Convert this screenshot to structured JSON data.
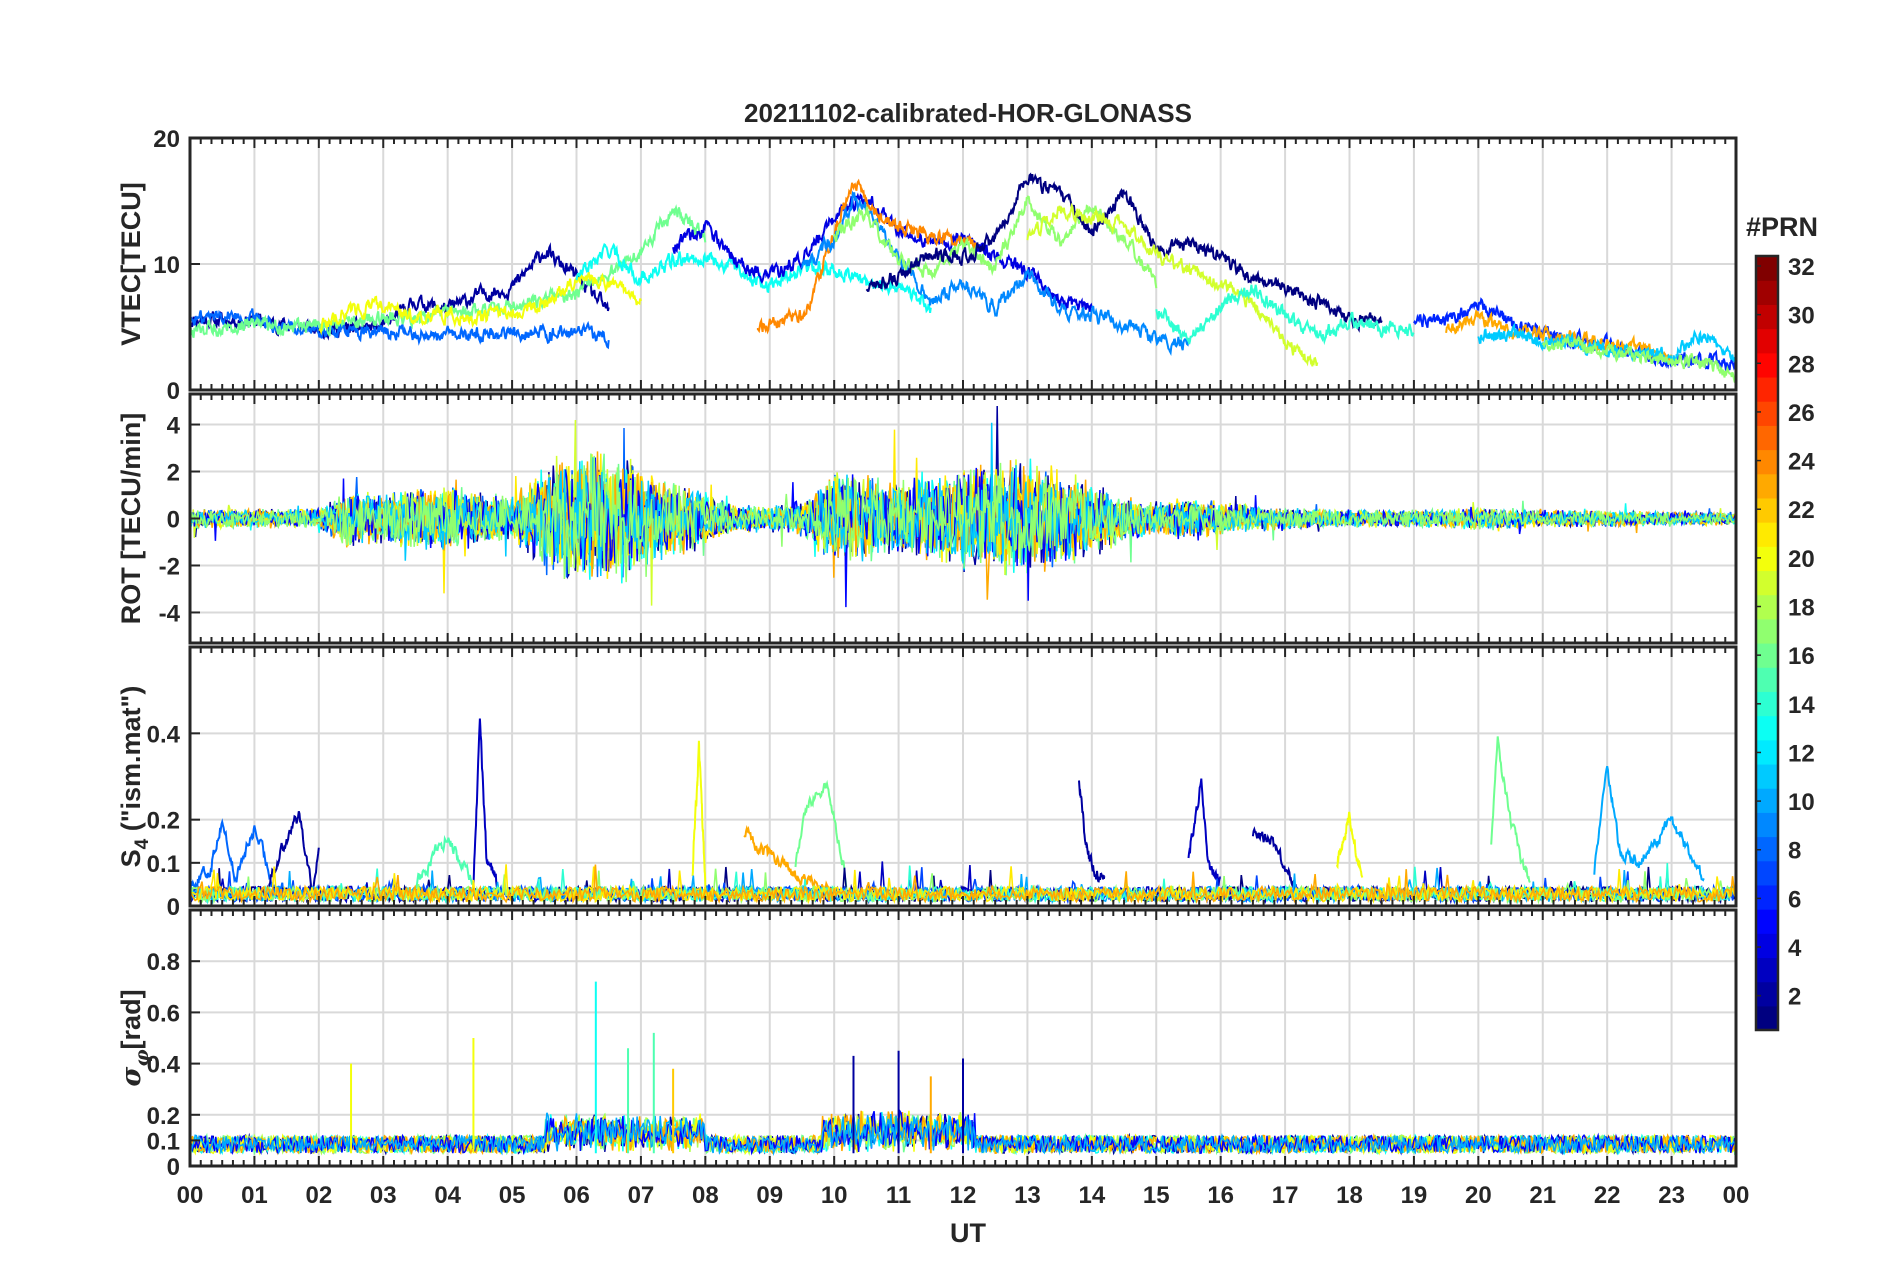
{
  "chart_data": [
    {
      "type": "line",
      "panel": "vtec",
      "title": "20211102-calibrated-HOR-GLONASS",
      "ylabel": "VTEC[TECU]",
      "ylim": [
        0,
        20
      ],
      "yticks": [
        0,
        10,
        20
      ],
      "series": [
        {
          "name": "PRN 2",
          "x": [
            0,
            1,
            2,
            3,
            3.5,
            4,
            4.5,
            5,
            5.5,
            6,
            6.5
          ],
          "values": [
            5.6,
            5.5,
            4.8,
            5.0,
            7.0,
            6.4,
            7.6,
            8.1,
            11.0,
            9.0,
            6.2
          ]
        },
        {
          "name": "PRN 8",
          "x": [
            0,
            0.5,
            1,
            1.5,
            2,
            3,
            4,
            5,
            6,
            6.5
          ],
          "values": [
            5.5,
            6.0,
            5.8,
            5.0,
            4.7,
            4.6,
            4.3,
            4.6,
            4.5,
            4.2
          ]
        },
        {
          "name": "PRN 16",
          "x": [
            0,
            0.5,
            1,
            1.5,
            2,
            3,
            4,
            5,
            6,
            7,
            7.5,
            8
          ],
          "values": [
            4.6,
            5.0,
            5.5,
            5.0,
            5.1,
            5.6,
            6.0,
            6.7,
            7.6,
            10.8,
            14.4,
            12.3
          ]
        },
        {
          "name": "PRN 20",
          "x": [
            2,
            2.5,
            3,
            3.5,
            4,
            4.5,
            5,
            5.5,
            6,
            6.5,
            7
          ],
          "values": [
            5.0,
            6.4,
            6.7,
            5.8,
            6.0,
            5.7,
            6.2,
            6.8,
            9.0,
            8.5,
            7.1
          ]
        },
        {
          "name": "PRN 13",
          "x": [
            6,
            6.5,
            7,
            7.5,
            8,
            8.5,
            9,
            9.5,
            10,
            10.5,
            11,
            11.5
          ],
          "values": [
            8.9,
            11.2,
            8.8,
            10.2,
            10.6,
            9.6,
            8.2,
            9.8,
            9.7,
            8.6,
            8.2,
            6.5
          ]
        },
        {
          "name": "PRN 4",
          "x": [
            7.5,
            8,
            8.5,
            9,
            9.5,
            10,
            10.5,
            11,
            11.5,
            12,
            12.5,
            13,
            13.5,
            14
          ],
          "values": [
            11.5,
            12.8,
            10.2,
            9.0,
            10.4,
            13.8,
            15.4,
            12.6,
            11.8,
            12.0,
            10.5,
            9.3,
            7.2,
            6.4
          ]
        },
        {
          "name": "PRN 24",
          "x": [
            8.8,
            9.2,
            9.6,
            10,
            10.3,
            10.6,
            11,
            11.4,
            11.8,
            12.2
          ],
          "values": [
            5.0,
            5.4,
            6.3,
            12.4,
            16.5,
            14.0,
            12.8,
            12.4,
            12.0,
            11.5
          ]
        },
        {
          "name": "PRN 9",
          "x": [
            9.5,
            10,
            10.3,
            10.6,
            11,
            11.5,
            12,
            12.5,
            13,
            13.5,
            14,
            14.5,
            15,
            15.5
          ],
          "values": [
            9.8,
            12.0,
            15.2,
            14.0,
            10.5,
            7.0,
            8.5,
            6.5,
            9.0,
            6.5,
            6.0,
            5.2,
            4.0,
            3.6
          ]
        },
        {
          "name": "PRN 17",
          "x": [
            10,
            10.5,
            11,
            11.5,
            12,
            12.5,
            13,
            13.5,
            14,
            14.5,
            15
          ],
          "values": [
            12.5,
            14.0,
            10.2,
            9.5,
            11.5,
            9.8,
            15.0,
            11.8,
            14.6,
            12.0,
            8.6
          ]
        },
        {
          "name": "PRN 1",
          "x": [
            10.5,
            11,
            11.5,
            12,
            12.5,
            13,
            13.5,
            14,
            14.5,
            15,
            15.5,
            16,
            16.5,
            17,
            17.5,
            18,
            18.5
          ],
          "values": [
            8.0,
            9.0,
            10.8,
            10.5,
            12.0,
            17.0,
            15.5,
            12.5,
            15.7,
            11.4,
            11.6,
            10.5,
            8.8,
            8.2,
            7.0,
            5.6,
            5.6
          ]
        },
        {
          "name": "PRN 19",
          "x": [
            13,
            13.5,
            14,
            14.5,
            15,
            15.5,
            16,
            16.5,
            17,
            17.5
          ],
          "values": [
            12.0,
            14.4,
            13.6,
            13.2,
            10.8,
            9.6,
            8.4,
            6.8,
            3.6,
            2.0
          ]
        },
        {
          "name": "PRN 14",
          "x": [
            15,
            15.5,
            16,
            16.5,
            17,
            17.5,
            18,
            18.5,
            19
          ],
          "values": [
            6.5,
            3.8,
            6.8,
            8.0,
            6.0,
            4.2,
            5.5,
            4.8,
            4.9
          ]
        },
        {
          "name": "PRN 6",
          "x": [
            19,
            19.5,
            20,
            20.5,
            21,
            21.5,
            22,
            22.5,
            23,
            23.5,
            24
          ],
          "values": [
            5.4,
            5.6,
            6.8,
            5.2,
            4.5,
            4.0,
            3.5,
            2.8,
            2.5,
            2.3,
            2.0
          ]
        },
        {
          "name": "PRN 23",
          "x": [
            19.5,
            20,
            20.5,
            21,
            21.5,
            22,
            22.5,
            23
          ],
          "values": [
            4.6,
            5.8,
            4.6,
            4.4,
            4.0,
            3.6,
            3.3,
            2.9
          ]
        },
        {
          "name": "PRN 11",
          "x": [
            20,
            20.5,
            21,
            21.5,
            22,
            22.5,
            23,
            23.5,
            24
          ],
          "values": [
            4.3,
            4.5,
            3.9,
            3.6,
            3.2,
            3.0,
            2.8,
            4.5,
            2.8
          ]
        },
        {
          "name": "PRN 17",
          "x": [
            21,
            21.5,
            22,
            22.5,
            23,
            23.5,
            24
          ],
          "values": [
            3.6,
            3.4,
            3.0,
            2.6,
            2.4,
            2.2,
            1.2
          ]
        }
      ]
    },
    {
      "type": "line",
      "panel": "rot",
      "ylabel": "ROT [TECU/min]",
      "ylim": [
        -5.3,
        5.3
      ],
      "yticks": [
        -4,
        -2,
        0,
        2,
        4
      ],
      "noise_envelope": {
        "x": [
          0,
          1,
          2,
          2.5,
          3,
          4,
          4.5,
          5,
          5.5,
          6,
          6.5,
          7,
          7.5,
          8,
          8.5,
          9,
          9.5,
          10,
          10.5,
          11,
          11.5,
          12,
          12.5,
          13,
          13.5,
          14,
          14.5,
          15,
          15.5,
          16,
          16.5,
          17,
          18,
          19,
          20,
          21,
          22,
          23,
          24
        ],
        "amplitude": [
          0.5,
          0.4,
          0.5,
          1.4,
          1.2,
          1.6,
          1.2,
          1.0,
          2.5,
          3.0,
          3.2,
          2.4,
          1.8,
          1.2,
          0.6,
          0.6,
          0.8,
          2.2,
          2.0,
          1.8,
          2.2,
          2.4,
          2.8,
          2.6,
          2.2,
          1.8,
          1.0,
          0.8,
          0.9,
          0.8,
          0.6,
          0.5,
          0.4,
          0.4,
          0.5,
          0.4,
          0.4,
          0.3,
          0.3
        ]
      }
    },
    {
      "type": "line",
      "panel": "s4",
      "ylabel": "S_4 (\"ism.mat\")",
      "ylim": [
        0,
        0.6
      ],
      "yticks": [
        0,
        0.1,
        0.2,
        0.4
      ],
      "series": [
        {
          "name": "PRN 8",
          "x": [
            0,
            0.3,
            0.5,
            0.7,
            1,
            1.3,
            1.5
          ],
          "values": [
            0.05,
            0.08,
            0.2,
            0.06,
            0.18,
            0.05,
            0.03
          ]
        },
        {
          "name": "PRN 2",
          "x": [
            1.2,
            1.5,
            1.7,
            1.9,
            2
          ],
          "values": [
            0.05,
            0.16,
            0.21,
            0.04,
            0.12
          ]
        },
        {
          "name": "PRN 15",
          "x": [
            3.5,
            3.8,
            4,
            4.2,
            4.4
          ],
          "values": [
            0.05,
            0.12,
            0.16,
            0.1,
            0.05
          ]
        },
        {
          "name": "PRN 3",
          "x": [
            4.4,
            4.5,
            4.6,
            4.8
          ],
          "values": [
            0.05,
            0.43,
            0.12,
            0.04
          ]
        },
        {
          "name": "PRN 20",
          "x": [
            7.8,
            7.9,
            8
          ],
          "values": [
            0.08,
            0.36,
            0.06
          ]
        },
        {
          "name": "PRN 23",
          "x": [
            8.6,
            9,
            9.5,
            10
          ],
          "values": [
            0.17,
            0.12,
            0.06,
            0.03
          ]
        },
        {
          "name": "PRN 16",
          "x": [
            9.4,
            9.6,
            9.9,
            10.2
          ],
          "values": [
            0.1,
            0.24,
            0.28,
            0.05
          ]
        },
        {
          "name": "PRN 2",
          "x": [
            13.8,
            13.9,
            14,
            14.2
          ],
          "values": [
            0.3,
            0.15,
            0.1,
            0.05
          ]
        },
        {
          "name": "PRN 3",
          "x": [
            15.5,
            15.7,
            15.8,
            16
          ],
          "values": [
            0.12,
            0.28,
            0.1,
            0.05
          ]
        },
        {
          "name": "PRN 2",
          "x": [
            16.5,
            16.8,
            17,
            17.2
          ],
          "values": [
            0.17,
            0.15,
            0.09,
            0.03
          ]
        },
        {
          "name": "PRN 20",
          "x": [
            17.8,
            18,
            18.2
          ],
          "values": [
            0.1,
            0.21,
            0.06
          ]
        },
        {
          "name": "PRN 16",
          "x": [
            20.2,
            20.3,
            20.5,
            20.8
          ],
          "values": [
            0.15,
            0.38,
            0.2,
            0.05
          ]
        },
        {
          "name": "PRN 10",
          "x": [
            21.8,
            22,
            22.2,
            22.5,
            23,
            23.5
          ],
          "values": [
            0.08,
            0.32,
            0.12,
            0.1,
            0.2,
            0.06
          ]
        }
      ]
    },
    {
      "type": "line",
      "panel": "sigma_phi",
      "ylabel": "σ_φ[rad]",
      "ylim": [
        0,
        1.0
      ],
      "yticks": [
        0,
        0.1,
        0.2,
        0.4,
        0.6,
        0.8
      ],
      "spikes": {
        "x": [
          2.5,
          4.4,
          6.3,
          6.8,
          7.2,
          7.5,
          10.3,
          11.0,
          11.5,
          12.0
        ],
        "values": [
          0.4,
          0.5,
          0.72,
          0.46,
          0.52,
          0.38,
          0.43,
          0.45,
          0.35,
          0.42
        ]
      }
    }
  ],
  "x_axis": {
    "label": "UT",
    "ticks": [
      "00",
      "01",
      "02",
      "03",
      "04",
      "05",
      "06",
      "07",
      "08",
      "09",
      "10",
      "11",
      "12",
      "13",
      "14",
      "15",
      "16",
      "17",
      "18",
      "19",
      "20",
      "21",
      "22",
      "23",
      "00"
    ]
  },
  "colorbar": {
    "title": "#PRN",
    "range": [
      1,
      32
    ],
    "ticks": [
      "2",
      "4",
      "6",
      "8",
      "10",
      "12",
      "14",
      "16",
      "18",
      "20",
      "22",
      "24",
      "26",
      "28",
      "30",
      "32"
    ]
  }
}
